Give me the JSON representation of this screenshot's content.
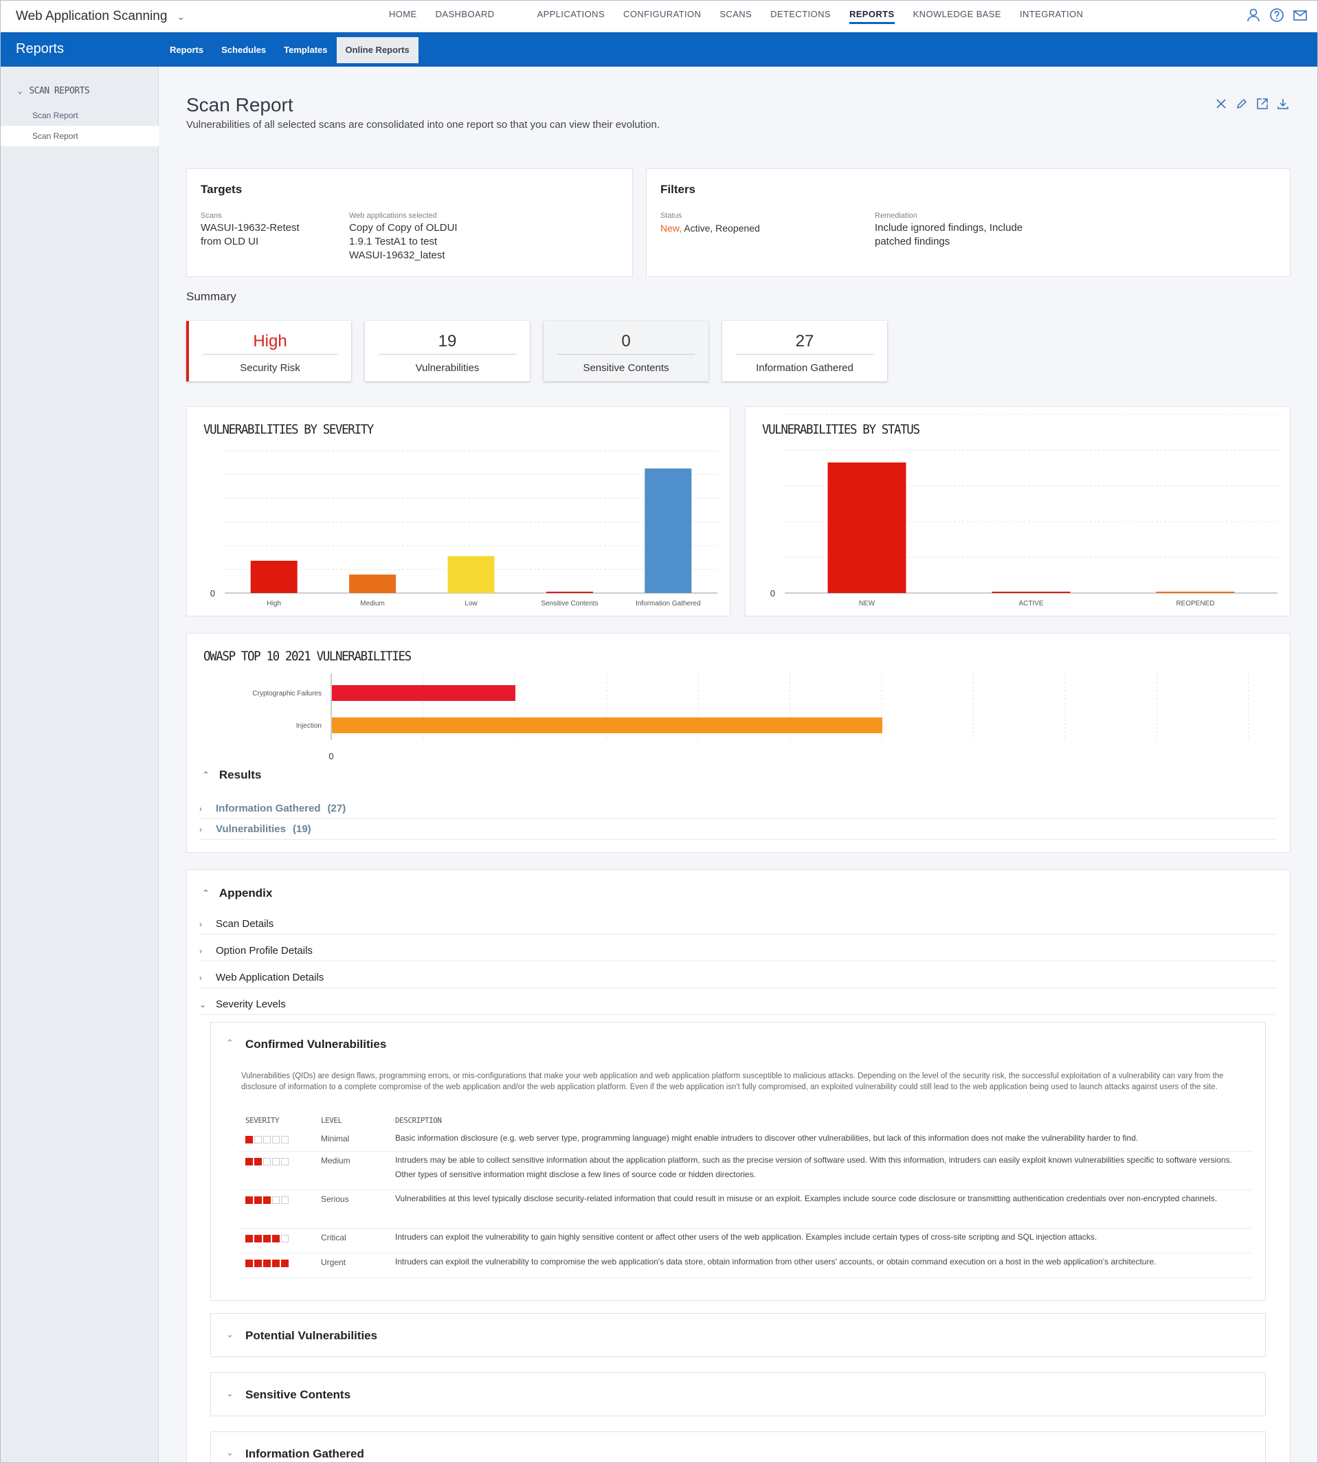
{
  "app": {
    "title": "Web Application Scanning"
  },
  "nav": {
    "items": [
      "HOME",
      "DASHBOARD",
      "APPLICATIONS",
      "CONFIGURATION",
      "SCANS",
      "DETECTIONS",
      "REPORTS",
      "KNOWLEDGE BASE",
      "INTEGRATION"
    ],
    "active": "REPORTS"
  },
  "subbar": {
    "section": "Reports",
    "tabs": [
      "Reports",
      "Schedules",
      "Templates",
      "Online Reports"
    ],
    "active": "Online Reports"
  },
  "sidebar": {
    "heading": "SCAN REPORTS",
    "items": [
      "Scan Report",
      "Scan Report"
    ]
  },
  "report": {
    "title": "Scan Report",
    "subtitle": "Vulnerabilities of all selected scans are consolidated into one report so that you can view their evolution."
  },
  "targets": {
    "title": "Targets",
    "scans_label": "Scans",
    "scans_value": "WASUI-19632-Retest from OLD UI",
    "webapps_label": "Web applications selected",
    "webapps_value": "Copy of Copy of OLDUI 1.9.1 TestA1 to test WASUI-19632_latest"
  },
  "filters": {
    "title": "Filters",
    "status_label": "Status",
    "status_new": "New,",
    "status_rest": "Active,  Reopened",
    "remediation_label": "Remediation",
    "remediation_value": "Include ignored findings, Include patched findings"
  },
  "summary": {
    "label": "Summary",
    "cards": [
      {
        "value": "High",
        "label": "Security Risk"
      },
      {
        "value": "19",
        "label": "Vulnerabilities"
      },
      {
        "value": "0",
        "label": "Sensitive Contents"
      },
      {
        "value": "27",
        "label": "Information Gathered"
      }
    ]
  },
  "chart_data": [
    {
      "type": "bar",
      "title": "VULNERABILITIES BY SEVERITY",
      "categories": [
        "High",
        "Medium",
        "Low",
        "Sensitive Contents",
        "Information Gathered"
      ],
      "values": [
        7,
        4,
        8,
        0,
        27
      ],
      "ylim": [
        0,
        28
      ],
      "colors": [
        "#e0190e",
        "#e86e1a",
        "#f6d832",
        "#e0190e",
        "#4f8fcb"
      ],
      "ytick": "0"
    },
    {
      "type": "bar",
      "title": "VULNERABILITIES BY STATUS",
      "categories": [
        "NEW",
        "ACTIVE",
        "REOPENED"
      ],
      "values": [
        19,
        0,
        0
      ],
      "ylim": [
        0,
        20
      ],
      "colors": [
        "#e0190e",
        "#e0190e",
        "#e86e1a"
      ],
      "ytick": "0"
    },
    {
      "type": "bar",
      "orientation": "horizontal",
      "title": "OWASP TOP 10 2021 VULNERABILITIES",
      "categories": [
        "Cryptographic Failures",
        "Injection"
      ],
      "values": [
        2,
        6
      ],
      "xlim": [
        0,
        10
      ],
      "colors": [
        "#e8182f",
        "#f7941d"
      ],
      "xtick": "0"
    }
  ],
  "results": {
    "heading": "Results",
    "items": [
      {
        "label": "Information Gathered",
        "count": "(27)"
      },
      {
        "label": "Vulnerabilities",
        "count": "(19)"
      }
    ]
  },
  "appendix": {
    "heading": "Appendix",
    "items": [
      "Scan Details",
      "Option Profile Details",
      "Web Application Details",
      "Severity Levels"
    ],
    "confirmed": {
      "title": "Confirmed Vulnerabilities",
      "description": "Vulnerabilities (QIDs) are design flaws, programming errors, or mis-configurations that make your web application and web application platform susceptible to malicious attacks. Depending on the level of the security risk, the successful exploitation of a vulnerability can vary from the disclosure of information to a complete compromise of the web application and/or the web application platform. Even if the web application isn't fully compromised, an exploited vulnerability could still lead to the web application being used to launch attacks against users of the site.",
      "headers": [
        "SEVERITY",
        "LEVEL",
        "DESCRIPTION"
      ],
      "rows": [
        {
          "severity": 1,
          "level": "Minimal",
          "description": "Basic information disclosure (e.g. web server type, programming language) might enable intruders to discover other vulnerabilities, but lack of this information does not make the vulnerability harder to find."
        },
        {
          "severity": 2,
          "level": "Medium",
          "description": "Intruders may be able to collect sensitive information about the application platform, such as the precise version of software used. With this information, intruders can easily exploit known vulnerabilities specific to software versions. Other types of sensitive information might disclose a few lines of source code or hidden directories."
        },
        {
          "severity": 3,
          "level": "Serious",
          "description": "Vulnerabilities at this level typically disclose security-related information that could result in misuse or an exploit. Examples include source code disclosure or transmitting authentication credentials over non-encrypted channels."
        },
        {
          "severity": 4,
          "level": "Critical",
          "description": "Intruders can exploit the vulnerability to gain highly sensitive content or affect other users of the web application. Examples include certain types of cross-site scripting and SQL injection attacks."
        },
        {
          "severity": 5,
          "level": "Urgent",
          "description": "Intruders can exploit the vulnerability to compromise the web application's data store, obtain information from other users' accounts, or obtain command execution on a host in the web application's architecture."
        }
      ]
    },
    "collapsed": [
      "Potential Vulnerabilities",
      "Sensitive Contents",
      "Information Gathered"
    ]
  }
}
